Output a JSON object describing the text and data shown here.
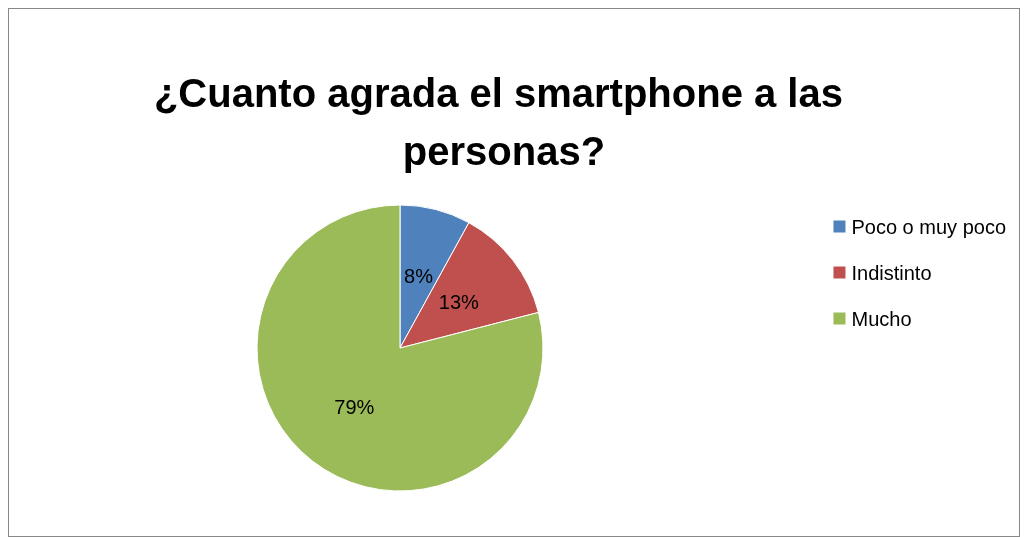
{
  "chart_data": {
    "type": "pie",
    "title": "¿Cuanto agrada el smartphone a las personas?",
    "categories": [
      "Poco o muy poco",
      "Indistinto",
      "Mucho"
    ],
    "values": [
      8,
      13,
      79
    ],
    "colors": [
      "#4f81bd",
      "#c0504d",
      "#9bbb59"
    ],
    "value_labels": [
      "8%",
      "13%",
      "79%"
    ],
    "legend": "right"
  }
}
